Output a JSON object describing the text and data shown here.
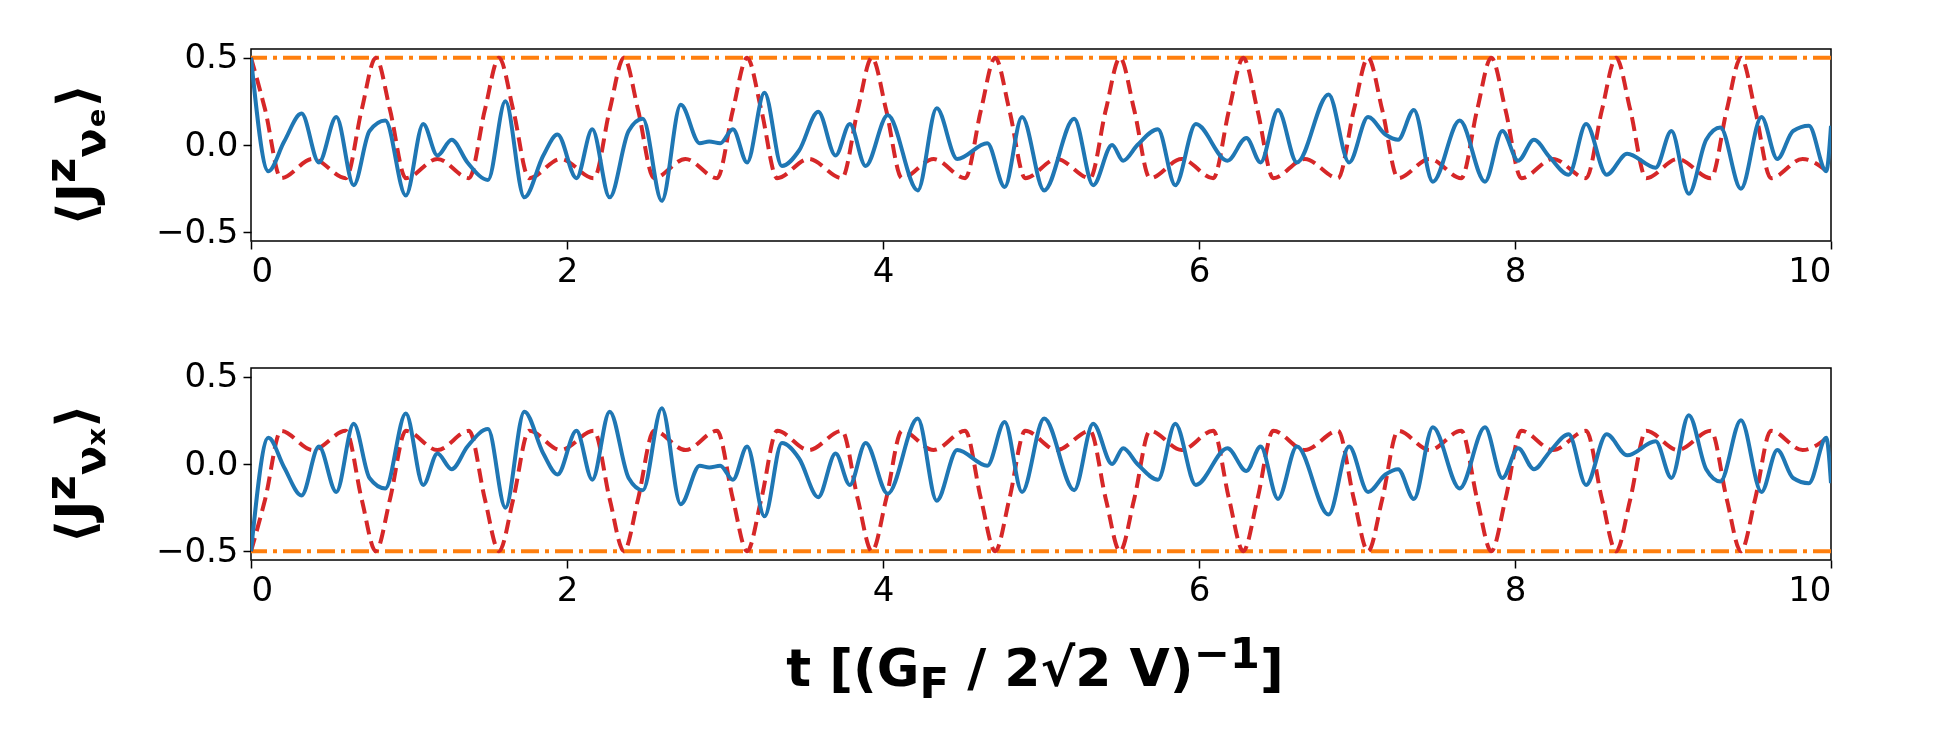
{
  "chart_data": [
    {
      "type": "line",
      "ylabel": "⟨J$^{z}$$_{νₑ}$⟩",
      "xlim": [
        0,
        10
      ],
      "xticks": [
        0,
        2,
        4,
        6,
        8,
        10
      ],
      "ylim": [
        -0.55,
        0.55
      ],
      "yticks": [
        {
          "value": -0.5,
          "label": "−0.5"
        },
        {
          "value": 0,
          "label": "0.0"
        },
        {
          "value": 0.5,
          "label": "0.5"
        }
      ],
      "series": [
        {
          "color": "#1f77b4",
          "line_style": "solid",
          "x": [
            0,
            0.11,
            0.21,
            0.32,
            0.43,
            0.54,
            0.65,
            0.75,
            0.85,
            0.98,
            1.09,
            1.18,
            1.27,
            1.37,
            1.5,
            1.61,
            1.73,
            1.85,
            1.94,
            2.06,
            2.16,
            2.27,
            2.39,
            2.48,
            2.6,
            2.72,
            2.84,
            2.9,
            2.97,
            3.05,
            3.14,
            3.25,
            3.36,
            3.47,
            3.59,
            3.7,
            3.79,
            3.89,
            4.03,
            4.22,
            4.34,
            4.47,
            4.66,
            4.77,
            4.88,
            5.02,
            5.21,
            5.33,
            5.45,
            5.52,
            5.61,
            5.74,
            5.85,
            5.98,
            6.18,
            6.3,
            6.39,
            6.5,
            6.62,
            6.82,
            6.95,
            7.07,
            7.18,
            7.26,
            7.36,
            7.48,
            7.65,
            7.81,
            7.92,
            8.02,
            8.12,
            8.22,
            8.34,
            8.45,
            8.58,
            8.71,
            8.89,
            8.99,
            9.1,
            9.21,
            9.3,
            9.43,
            9.56,
            9.66,
            9.76,
            9.86,
            9.97,
            10
          ],
          "values": [
            0.5,
            -0.15,
            0.02,
            0.18,
            -0.1,
            0.16,
            -0.23,
            0.08,
            0.14,
            -0.29,
            0.12,
            -0.06,
            0.03,
            -0.1,
            -0.2,
            0.25,
            -0.3,
            -0.06,
            0.06,
            -0.19,
            0.09,
            -0.3,
            0.08,
            0.15,
            -0.32,
            0.23,
            0.01,
            0.02,
            0.01,
            0.09,
            -0.1,
            0.3,
            -0.12,
            -0.03,
            0.19,
            -0.06,
            0.12,
            -0.12,
            0.17,
            -0.26,
            0.21,
            -0.08,
            0.01,
            -0.24,
            0.16,
            -0.26,
            0.15,
            -0.23,
            0,
            -0.09,
            0,
            0.09,
            -0.23,
            0.12,
            -0.09,
            0.04,
            -0.1,
            0.2,
            -0.1,
            0.29,
            -0.1,
            0.16,
            0.06,
            0.03,
            0.2,
            -0.21,
            0.14,
            -0.21,
            0.08,
            -0.09,
            0.03,
            -0.07,
            -0.17,
            0.12,
            -0.17,
            -0.05,
            -0.13,
            0.08,
            -0.28,
            0.03,
            0.1,
            -0.25,
            0.16,
            -0.08,
            0.08,
            0.11,
            -0.15,
            0.11
          ]
        },
        {
          "color": "#d62728",
          "line_style": "dashed",
          "x": [
            0,
            0.09,
            0.19,
            0.39,
            0.6,
            0.7,
            0.79,
            0.88,
            0.98,
            1.18,
            1.38,
            1.48,
            1.57,
            1.66,
            1.76,
            1.96,
            2.17,
            2.27,
            2.36,
            2.45,
            2.55,
            2.75,
            2.95,
            3.05,
            3.14,
            3.23,
            3.33,
            3.53,
            3.74,
            3.84,
            3.93,
            4.02,
            4.12,
            4.32,
            4.52,
            4.62,
            4.71,
            4.8,
            4.9,
            5.1,
            5.31,
            5.41,
            5.5,
            5.59,
            5.69,
            5.89,
            6.09,
            6.19,
            6.28,
            6.37,
            6.47,
            6.67,
            6.88,
            6.98,
            7.07,
            7.16,
            7.26,
            7.46,
            7.66,
            7.76,
            7.85,
            7.94,
            8.04,
            8.24,
            8.45,
            8.55,
            8.64,
            8.73,
            8.83,
            9.03,
            9.24,
            9.34,
            9.43,
            9.52,
            9.62,
            9.82,
            10
          ],
          "values": [
            0.5,
            0.2,
            -0.19,
            -0.08,
            -0.19,
            0.2,
            0.5,
            0.2,
            -0.19,
            -0.08,
            -0.19,
            0.2,
            0.5,
            0.2,
            -0.19,
            -0.08,
            -0.19,
            0.2,
            0.5,
            0.2,
            -0.19,
            -0.08,
            -0.19,
            0.2,
            0.5,
            0.2,
            -0.19,
            -0.08,
            -0.19,
            0.2,
            0.5,
            0.2,
            -0.19,
            -0.08,
            -0.19,
            0.2,
            0.5,
            0.2,
            -0.19,
            -0.08,
            -0.19,
            0.2,
            0.5,
            0.2,
            -0.19,
            -0.08,
            -0.19,
            0.2,
            0.5,
            0.2,
            -0.19,
            -0.08,
            -0.19,
            0.2,
            0.5,
            0.2,
            -0.19,
            -0.08,
            -0.19,
            0.2,
            0.5,
            0.2,
            -0.19,
            -0.08,
            -0.19,
            0.2,
            0.5,
            0.2,
            -0.19,
            -0.08,
            -0.19,
            0.2,
            0.5,
            0.2,
            -0.19,
            -0.08,
            -0.17
          ]
        }
      ],
      "ref_lines": [
        {
          "axis": "y",
          "value": 0.5,
          "color": "#ff7f0e",
          "line_style": "dashdot"
        }
      ]
    },
    {
      "type": "line",
      "ylabel": "⟨J$^{z}$$_{νₓ}$⟩",
      "xlabel": "t [(G$_{F}$ / 2√2 V)$^{−1}$]",
      "xlim": [
        0,
        10
      ],
      "xticks": [
        0,
        2,
        4,
        6,
        8,
        10
      ],
      "ylim": [
        -0.55,
        0.55
      ],
      "yticks": [
        {
          "value": -0.5,
          "label": "−0.5"
        },
        {
          "value": 0,
          "label": "0.0"
        },
        {
          "value": 0.5,
          "label": "0.5"
        }
      ],
      "series": [
        {
          "color": "#1f77b4",
          "line_style": "solid",
          "x": [
            0,
            0.11,
            0.21,
            0.32,
            0.43,
            0.54,
            0.65,
            0.75,
            0.85,
            0.98,
            1.09,
            1.18,
            1.27,
            1.37,
            1.5,
            1.61,
            1.73,
            1.85,
            1.94,
            2.06,
            2.16,
            2.27,
            2.39,
            2.48,
            2.6,
            2.72,
            2.84,
            2.9,
            2.97,
            3.05,
            3.14,
            3.25,
            3.36,
            3.47,
            3.59,
            3.7,
            3.79,
            3.89,
            4.03,
            4.22,
            4.34,
            4.47,
            4.66,
            4.77,
            4.88,
            5.02,
            5.21,
            5.33,
            5.45,
            5.52,
            5.61,
            5.74,
            5.85,
            5.98,
            6.18,
            6.3,
            6.39,
            6.5,
            6.62,
            6.82,
            6.95,
            7.07,
            7.18,
            7.26,
            7.36,
            7.48,
            7.65,
            7.81,
            7.92,
            8.02,
            8.12,
            8.22,
            8.34,
            8.45,
            8.58,
            8.71,
            8.89,
            8.99,
            9.1,
            9.21,
            9.3,
            9.43,
            9.56,
            9.66,
            9.76,
            9.86,
            9.97,
            10
          ],
          "values": [
            -0.5,
            0.15,
            -0.02,
            -0.18,
            0.1,
            -0.16,
            0.23,
            -0.08,
            -0.14,
            0.29,
            -0.12,
            0.06,
            -0.03,
            0.1,
            0.2,
            -0.25,
            0.3,
            0.06,
            -0.06,
            0.19,
            -0.09,
            0.3,
            -0.08,
            -0.15,
            0.32,
            -0.23,
            -0.01,
            -0.02,
            -0.01,
            -0.09,
            0.1,
            -0.3,
            0.12,
            0.03,
            -0.19,
            0.06,
            -0.12,
            0.12,
            -0.17,
            0.26,
            -0.21,
            0.08,
            -0.01,
            0.24,
            -0.16,
            0.26,
            -0.15,
            0.23,
            0,
            0.09,
            0,
            -0.09,
            0.23,
            -0.12,
            0.09,
            -0.04,
            0.1,
            -0.2,
            0.1,
            -0.29,
            0.1,
            -0.16,
            -0.06,
            -0.03,
            -0.2,
            0.21,
            -0.14,
            0.21,
            -0.08,
            0.09,
            -0.03,
            0.07,
            0.17,
            -0.12,
            0.17,
            0.05,
            0.13,
            -0.08,
            0.28,
            -0.03,
            -0.1,
            0.25,
            -0.16,
            0.08,
            -0.08,
            -0.11,
            0.15,
            -0.11
          ]
        },
        {
          "color": "#d62728",
          "line_style": "dashed",
          "x": [
            0,
            0.09,
            0.19,
            0.39,
            0.6,
            0.7,
            0.79,
            0.88,
            0.98,
            1.18,
            1.38,
            1.48,
            1.57,
            1.66,
            1.76,
            1.96,
            2.17,
            2.27,
            2.36,
            2.45,
            2.55,
            2.75,
            2.95,
            3.05,
            3.14,
            3.23,
            3.33,
            3.53,
            3.74,
            3.84,
            3.93,
            4.02,
            4.12,
            4.32,
            4.52,
            4.62,
            4.71,
            4.8,
            4.9,
            5.1,
            5.31,
            5.41,
            5.5,
            5.59,
            5.69,
            5.89,
            6.09,
            6.19,
            6.28,
            6.37,
            6.47,
            6.67,
            6.88,
            6.98,
            7.07,
            7.16,
            7.26,
            7.46,
            7.66,
            7.76,
            7.85,
            7.94,
            8.04,
            8.24,
            8.45,
            8.55,
            8.64,
            8.73,
            8.83,
            9.03,
            9.24,
            9.34,
            9.43,
            9.52,
            9.62,
            9.82,
            10
          ],
          "values": [
            -0.5,
            -0.2,
            0.19,
            0.08,
            0.19,
            -0.2,
            -0.5,
            -0.2,
            0.19,
            0.08,
            0.19,
            -0.2,
            -0.5,
            -0.2,
            0.19,
            0.08,
            0.19,
            -0.2,
            -0.5,
            -0.2,
            0.19,
            0.08,
            0.19,
            -0.2,
            -0.5,
            -0.2,
            0.19,
            0.08,
            0.19,
            -0.2,
            -0.5,
            -0.2,
            0.19,
            0.08,
            0.19,
            -0.2,
            -0.5,
            -0.2,
            0.19,
            0.08,
            0.19,
            -0.2,
            -0.5,
            -0.2,
            0.19,
            0.08,
            0.19,
            -0.2,
            -0.5,
            -0.2,
            0.19,
            0.08,
            0.19,
            -0.2,
            -0.5,
            -0.2,
            0.19,
            0.08,
            0.19,
            -0.2,
            -0.5,
            -0.2,
            0.19,
            0.08,
            0.19,
            -0.2,
            -0.5,
            -0.2,
            0.19,
            0.08,
            0.19,
            -0.2,
            -0.5,
            -0.2,
            0.19,
            0.08,
            0.17
          ]
        }
      ],
      "ref_lines": [
        {
          "axis": "y",
          "value": -0.5,
          "color": "#ff7f0e",
          "line_style": "dashdot"
        }
      ]
    }
  ]
}
